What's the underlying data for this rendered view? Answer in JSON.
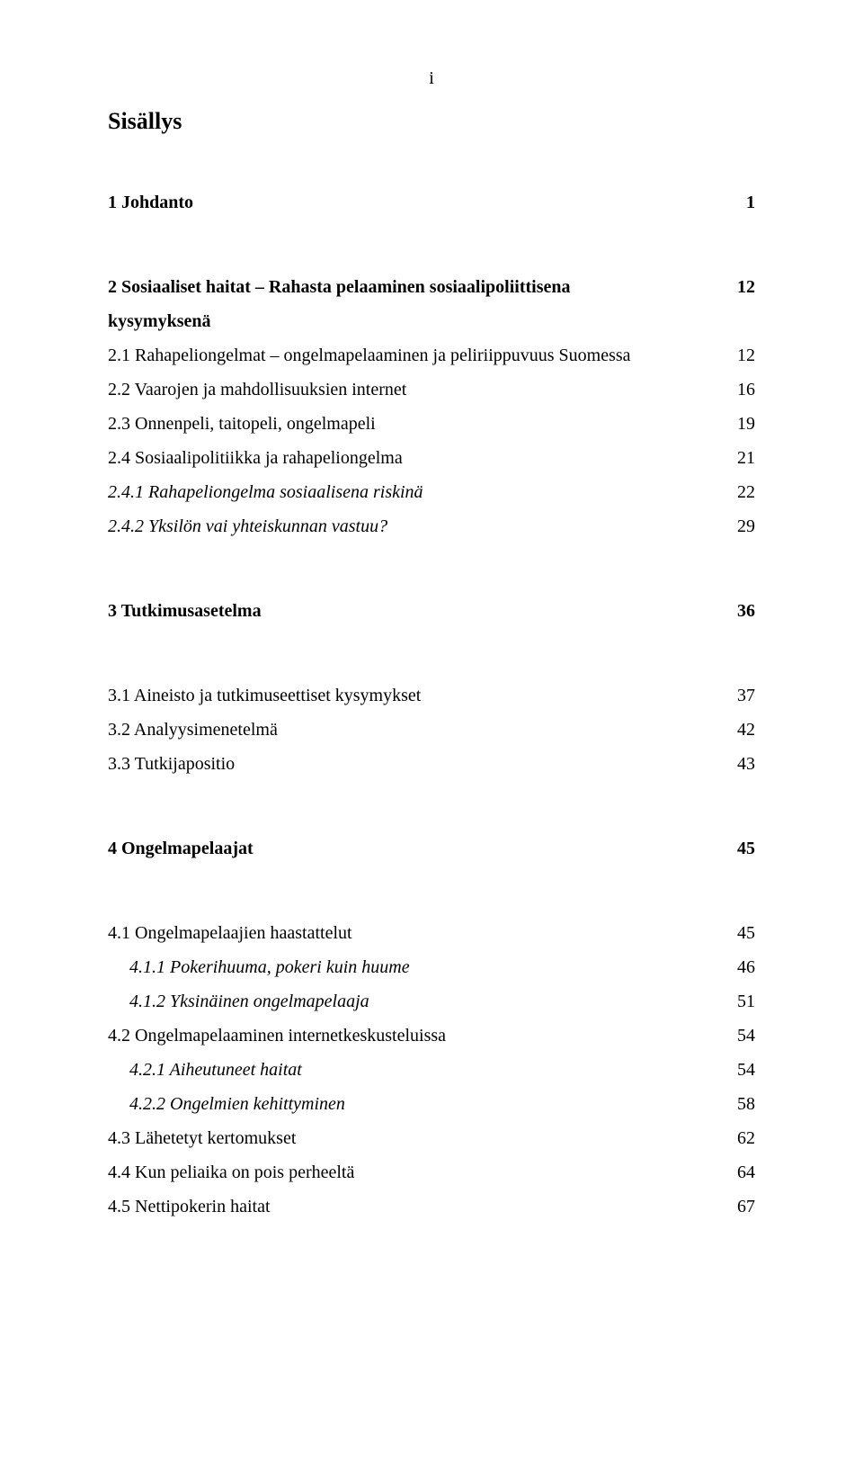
{
  "page_marker": "i",
  "title": "Sisällys",
  "colors": {
    "text": "#000000",
    "background": "#ffffff"
  },
  "typography": {
    "font_family": "Times New Roman",
    "title_fontsize_pt": 15,
    "body_fontsize_pt": 12,
    "line_height": 1.9
  },
  "entries": [
    {
      "label": "1 Johdanto",
      "page": "1",
      "level": 0,
      "bold": true
    },
    {
      "label": "2 Sosiaaliset haitat – Rahasta pelaaminen sosiaalipoliittisena kysymyksenä",
      "page": "12",
      "level": 0,
      "bold": true,
      "section_gap": true,
      "wrap": true
    },
    {
      "label": "2.1 Rahapeliongelmat – ongelmapelaaminen ja peliriippuvuus Suomessa",
      "page": "12",
      "level": 1
    },
    {
      "label": "2.2 Vaarojen ja mahdollisuuksien internet",
      "page": "16",
      "level": 1
    },
    {
      "label": "2.3 Onnenpeli, taitopeli, ongelmapeli",
      "page": "19",
      "level": 1
    },
    {
      "label": "2.4 Sosiaalipolitiikka ja rahapeliongelma",
      "page": "21",
      "level": 1
    },
    {
      "label": "2.4.1 Rahapeliongelma sosiaalisena riskinä",
      "page": "22",
      "level": 1,
      "italic": true
    },
    {
      "label": "2.4.2 Yksilön vai yhteiskunnan vastuu?",
      "page": "29",
      "level": 1,
      "italic": true
    },
    {
      "label": "3 Tutkimusasetelma",
      "page": "36",
      "level": 0,
      "bold": true,
      "section_gap": true
    },
    {
      "label": "3.1 Aineisto ja tutkimuseettiset kysymykset",
      "page": "37",
      "level": 1,
      "section_gap": true
    },
    {
      "label": "3.2 Analyysimenetelmä",
      "page": "42",
      "level": 1
    },
    {
      "label": "3.3 Tutkijapositio",
      "page": "43",
      "level": 1
    },
    {
      "label": "4 Ongelmapelaajat",
      "page": "45",
      "level": 0,
      "bold": true,
      "section_gap": true
    },
    {
      "label": "4.1 Ongelmapelaajien haastattelut",
      "page": "45",
      "level": 1,
      "section_gap": true
    },
    {
      "label": "4.1.1 Pokerihuuma, pokeri kuin huume",
      "page": "46",
      "level": 2,
      "italic": true
    },
    {
      "label": "4.1.2 Yksinäinen ongelmapelaaja",
      "page": "51",
      "level": 2,
      "italic": true
    },
    {
      "label": "4.2 Ongelmapelaaminen internetkeskusteluissa",
      "page": "54",
      "level": 1
    },
    {
      "label": "4.2.1 Aiheutuneet haitat",
      "page": "54",
      "level": 2,
      "italic": true
    },
    {
      "label": "4.2.2 Ongelmien kehittyminen",
      "page": "58",
      "level": 2,
      "italic": true
    },
    {
      "label": "4.3 Lähetetyt kertomukset",
      "page": "62",
      "level": 1
    },
    {
      "label": "4.4 Kun peliaika on pois perheeltä",
      "page": "64",
      "level": 1
    },
    {
      "label": "4.5 Nettipokerin haitat",
      "page": "67",
      "level": 1
    }
  ]
}
